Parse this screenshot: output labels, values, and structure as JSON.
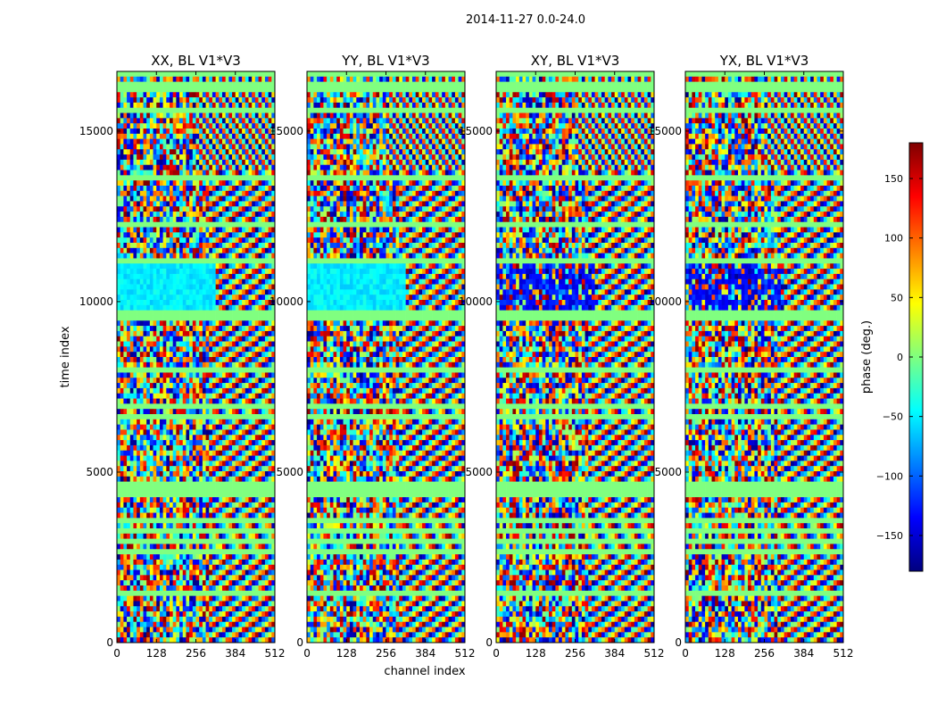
{
  "chart_data": {
    "type": "heatmap",
    "suptitle": "2014-11-27 0.0-24.0",
    "xlabel": "channel index",
    "ylabel": "time index",
    "xlim": [
      0,
      512
    ],
    "ylim": [
      0,
      16750
    ],
    "xticks": [
      0,
      128,
      256,
      384,
      512
    ],
    "yticks": [
      0,
      5000,
      10000,
      15000
    ],
    "colorbar": {
      "label": "phase (deg.)",
      "range": [
        -180,
        180
      ],
      "ticks": [
        -150,
        -100,
        -50,
        0,
        50,
        100,
        150
      ],
      "tick_labels": [
        "−150",
        "−100",
        "−50",
        "0",
        "50",
        "100",
        "150"
      ],
      "colors": [
        "#00007f",
        "#0000ff",
        "#007fff",
        "#00ffff",
        "#7fff7f",
        "#ffff00",
        "#ff7f00",
        "#ff0000",
        "#7f0000"
      ]
    },
    "panels": [
      {
        "title": "XX, BL V1*V3",
        "variant": 0
      },
      {
        "title": "YY, BL V1*V3",
        "variant": 1
      },
      {
        "title": "XY, BL V1*V3",
        "variant": 2
      },
      {
        "title": "YX, BL V1*V3",
        "variant": 3
      }
    ],
    "flagged_time_ranges": [
      [
        16200,
        16450
      ],
      [
        16600,
        16750
      ],
      [
        15550,
        15650
      ],
      [
        14100,
        14200
      ],
      [
        13500,
        13700
      ],
      [
        13200,
        13250
      ],
      [
        12900,
        12950
      ],
      [
        12250,
        12320
      ],
      [
        11850,
        11900
      ],
      [
        11100,
        11200
      ],
      [
        9400,
        9700
      ],
      [
        9250,
        9320
      ],
      [
        8700,
        8750
      ],
      [
        7950,
        8000
      ],
      [
        7400,
        7450
      ],
      [
        6900,
        6950
      ],
      [
        6600,
        6650
      ],
      [
        6350,
        6400
      ],
      [
        5900,
        5950
      ],
      [
        5450,
        5500
      ],
      [
        5050,
        5100
      ],
      [
        4300,
        4750
      ],
      [
        3550,
        3650
      ],
      [
        3200,
        3350
      ],
      [
        2900,
        3050
      ],
      [
        2650,
        2700
      ],
      [
        2300,
        2350
      ],
      [
        2000,
        2050
      ],
      [
        1700,
        1750
      ],
      [
        1400,
        1450
      ]
    ],
    "fringe_channel_start": 256
  }
}
